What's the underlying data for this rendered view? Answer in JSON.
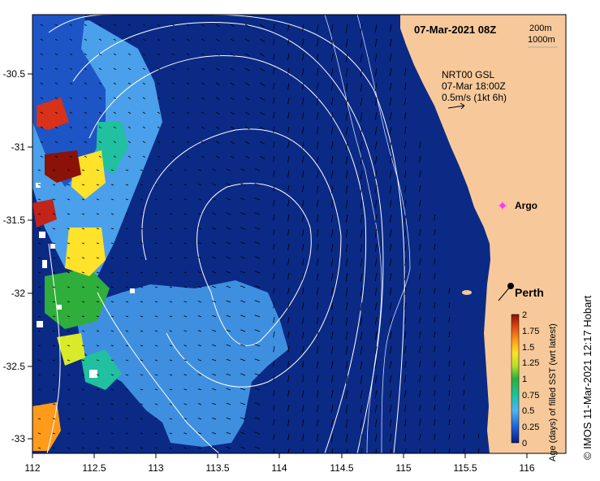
{
  "map": {
    "title": "07-Mar-2021 08Z",
    "contours_legend": [
      "200m",
      "1000m"
    ],
    "product": "NRT00 GSL",
    "product_time": "07-Mar 18:00Z",
    "vector_scale": "0.5m/s (1kt 6h)",
    "places": [
      {
        "name": "Argo",
        "lon": 115.85,
        "lat": -31.45,
        "marker": "magenta-star"
      },
      {
        "name": "Perth",
        "lon": 115.86,
        "lat": -31.95,
        "marker": "black-dot"
      }
    ],
    "credit": "© IMOS 11-Mar-2021 12:17 Hobart",
    "colors": {
      "ocean": "#0b2a86",
      "land": "#f7c99a",
      "contour": "#ffffff"
    }
  },
  "axes": {
    "x_ticks": [
      "112",
      "112.5",
      "113",
      "113.5",
      "114",
      "114.5",
      "115",
      "115.5",
      "116"
    ],
    "y_ticks": [
      "-30.5",
      "-31",
      "-31.5",
      "-32",
      "-32.5",
      "-33"
    ],
    "x_range": [
      112,
      116.3
    ],
    "y_range": [
      -33.1,
      -30.05
    ]
  },
  "colorbar": {
    "label": "Age (days) of filled SST (wrt latest)",
    "ticks": [
      "2",
      "1.75",
      "1.5",
      "1.25",
      "1",
      "0.75",
      "0.5",
      "0.25",
      "0"
    ],
    "range": [
      0,
      2
    ],
    "colors": [
      "#0b1a7a",
      "#1f5fd6",
      "#4fb3f0",
      "#20c0a0",
      "#2fae3c",
      "#b8e02a",
      "#ffe22a",
      "#ff9a1a",
      "#e04a14",
      "#8a1208"
    ]
  }
}
